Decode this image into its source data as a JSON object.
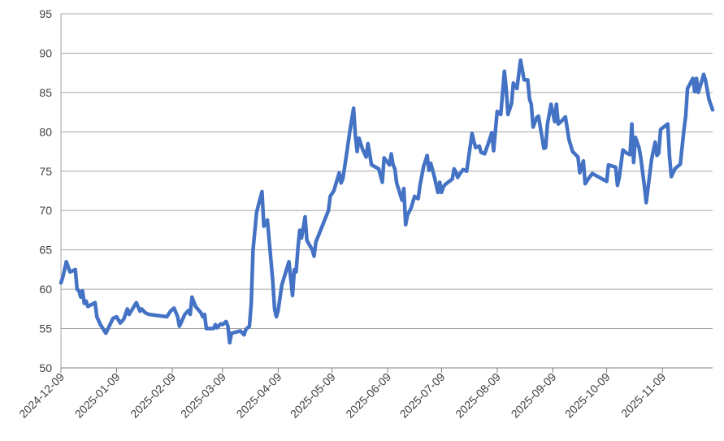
{
  "chart_data": {
    "type": "line",
    "x": [
      "2024-12-09",
      "2024-12-10",
      "2024-12-12",
      "2024-12-14",
      "2024-12-17",
      "2024-12-18",
      "2024-12-19",
      "2024-12-20",
      "2024-12-21",
      "2024-12-22",
      "2024-12-23",
      "2024-12-24",
      "2024-12-28",
      "2024-12-29",
      "2024-12-31",
      "2025-01-03",
      "2025-01-07",
      "2025-01-09",
      "2025-01-11",
      "2025-01-13",
      "2025-01-15",
      "2025-01-16",
      "2025-01-20",
      "2025-01-22",
      "2025-01-23",
      "2025-01-25",
      "2025-01-27",
      "2025-02-06",
      "2025-02-08",
      "2025-02-10",
      "2025-02-12",
      "2025-02-13",
      "2025-02-16",
      "2025-02-18",
      "2025-02-19",
      "2025-02-20",
      "2025-02-22",
      "2025-02-25",
      "2025-02-26",
      "2025-02-27",
      "2025-02-28",
      "2025-03-04",
      "2025-03-05",
      "2025-03-06",
      "2025-03-08",
      "2025-03-09",
      "2025-03-11",
      "2025-03-12",
      "2025-03-13",
      "2025-03-14",
      "2025-03-19",
      "2025-03-21",
      "2025-03-22",
      "2025-03-24",
      "2025-03-25",
      "2025-03-26",
      "2025-03-28",
      "2025-03-31",
      "2025-04-01",
      "2025-04-03",
      "2025-04-06",
      "2025-04-07",
      "2025-04-08",
      "2025-04-09",
      "2025-04-11",
      "2025-04-15",
      "2025-04-17",
      "2025-04-18",
      "2025-04-19",
      "2025-04-20",
      "2025-04-21",
      "2025-04-22",
      "2025-04-24",
      "2025-04-25",
      "2025-04-28",
      "2025-04-29",
      "2025-04-30",
      "2025-05-07",
      "2025-05-08",
      "2025-05-10",
      "2025-05-13",
      "2025-05-14",
      "2025-05-15",
      "2025-05-17",
      "2025-05-19",
      "2025-05-21",
      "2025-05-22",
      "2025-05-23",
      "2025-05-24",
      "2025-05-26",
      "2025-05-28",
      "2025-05-29",
      "2025-05-31",
      "2025-06-04",
      "2025-06-06",
      "2025-06-07",
      "2025-06-08",
      "2025-06-10",
      "2025-06-11",
      "2025-06-12",
      "2025-06-13",
      "2025-06-14",
      "2025-06-17",
      "2025-06-18",
      "2025-06-19",
      "2025-06-20",
      "2025-06-22",
      "2025-06-24",
      "2025-06-26",
      "2025-06-27",
      "2025-06-29",
      "2025-07-01",
      "2025-07-02",
      "2025-07-03",
      "2025-07-05",
      "2025-07-07",
      "2025-07-08",
      "2025-07-09",
      "2025-07-10",
      "2025-07-11",
      "2025-07-15",
      "2025-07-16",
      "2025-07-17",
      "2025-07-18",
      "2025-07-19",
      "2025-07-21",
      "2025-07-23",
      "2025-07-26",
      "2025-07-27",
      "2025-07-28",
      "2025-07-30",
      "2025-07-31",
      "2025-08-02",
      "2025-08-04",
      "2025-08-06",
      "2025-08-07",
      "2025-08-09",
      "2025-08-11",
      "2025-08-13",
      "2025-08-14",
      "2025-08-15",
      "2025-08-17",
      "2025-08-18",
      "2025-08-20",
      "2025-08-22",
      "2025-08-24",
      "2025-08-26",
      "2025-08-27",
      "2025-08-28",
      "2025-08-29",
      "2025-08-31",
      "2025-09-01",
      "2025-09-04",
      "2025-09-05",
      "2025-09-06",
      "2025-09-08",
      "2025-09-10",
      "2025-09-11",
      "2025-09-12",
      "2025-09-14",
      "2025-09-16",
      "2025-09-18",
      "2025-09-20",
      "2025-09-23",
      "2025-09-24",
      "2025-09-26",
      "2025-09-27",
      "2025-09-29",
      "2025-10-01",
      "2025-10-09",
      "2025-10-10",
      "2025-10-14",
      "2025-10-15",
      "2025-10-16",
      "2025-10-18",
      "2025-10-20",
      "2025-10-22",
      "2025-10-23",
      "2025-10-24",
      "2025-10-25",
      "2025-10-27",
      "2025-10-28",
      "2025-10-30",
      "2025-10-31",
      "2025-11-03",
      "2025-11-05",
      "2025-11-06",
      "2025-11-07",
      "2025-11-08",
      "2025-11-12",
      "2025-11-13",
      "2025-11-14",
      "2025-11-16",
      "2025-11-19",
      "2025-11-21",
      "2025-11-22",
      "2025-11-23",
      "2025-11-26",
      "2025-11-27",
      "2025-11-28",
      "2025-11-29",
      "2025-12-01",
      "2025-12-02",
      "2025-12-03",
      "2025-12-05",
      "2025-12-07"
    ],
    "series": [
      {
        "color": "#4472c4",
        "values": [
          60.8,
          61.5,
          63.5,
          62.2,
          62.5,
          60,
          59.8,
          59,
          59.8,
          58.2,
          58.5,
          57.8,
          58.3,
          56.5,
          55.5,
          54.4,
          56.3,
          56.5,
          55.7,
          56.2,
          57.5,
          56.8,
          58.3,
          57.2,
          57.5,
          57.0,
          56.8,
          56.5,
          57.2,
          57.6,
          56.5,
          55.3,
          56.8,
          57.3,
          56.8,
          59,
          57.8,
          57,
          56.5,
          56.8,
          55,
          55,
          55.5,
          55.1,
          55.6,
          55.5,
          55.9,
          55.3,
          53.2,
          54.4,
          54.7,
          54.2,
          54.9,
          55.3,
          58.2,
          65,
          69.8,
          72.4,
          68,
          68.8,
          61,
          57.5,
          56.5,
          57.3,
          60.5,
          63.5,
          59.2,
          62.5,
          62.2,
          65.2,
          67.5,
          66.5,
          69.2,
          66.2,
          65,
          64.2,
          66,
          70,
          71.8,
          72.5,
          74.8,
          73.5,
          74,
          77,
          80.2,
          83,
          79.5,
          77.5,
          79.2,
          77.8,
          76.8,
          78.5,
          75.8,
          75.3,
          73.6,
          76.7,
          76.4,
          75.8,
          77.2,
          75.8,
          75.3,
          73.5,
          71.3,
          72.8,
          68.2,
          69.4,
          70.3,
          71.8,
          71.5,
          73.2,
          75.6,
          77,
          75.1,
          76,
          74.3,
          72.3,
          73.6,
          72.3,
          73,
          73.3,
          74,
          75.3,
          74.9,
          74.2,
          74.6,
          75.2,
          75,
          79.8,
          78.8,
          78,
          78.2,
          77.4,
          77.2,
          78.5,
          79.9,
          77.6,
          82.6,
          82.2,
          87.7,
          85.5,
          82.2,
          83.6,
          86.2,
          85.5,
          89.1,
          86.6,
          86.6,
          84.2,
          83.5,
          80.6,
          81.8,
          82,
          77.9,
          78,
          81,
          83.5,
          81.3,
          83.5,
          81,
          81.4,
          81.9,
          79,
          77.5,
          76.8,
          74.8,
          76.3,
          73.4,
          74.1,
          74.7,
          73.7,
          75.8,
          75.5,
          73.2,
          74.2,
          77.7,
          77.3,
          77.1,
          81,
          76.1,
          79.3,
          78,
          76.7,
          73.1,
          71,
          76.5,
          78.7,
          77,
          77.3,
          80.3,
          81,
          76.8,
          74.3,
          75.3,
          75.9,
          80.2,
          82,
          85.5,
          86.8,
          85.1,
          86.8,
          85,
          86.5,
          87.3,
          86.6,
          84.1,
          82.8
        ]
      }
    ],
    "xlim": [
      "2024-12-09",
      "2025-12-07"
    ],
    "xticks": [
      "2024-12-09",
      "2025-01-09",
      "2025-02-09",
      "2025-03-09",
      "2025-04-09",
      "2025-05-09",
      "2025-06-09",
      "2025-07-09",
      "2025-08-09",
      "2025-09-09",
      "2025-10-09",
      "2025-11-09"
    ],
    "ylim": [
      50,
      95
    ],
    "yticks": [
      50,
      55,
      60,
      65,
      70,
      75,
      80,
      85,
      90,
      95
    ],
    "grid": true
  }
}
